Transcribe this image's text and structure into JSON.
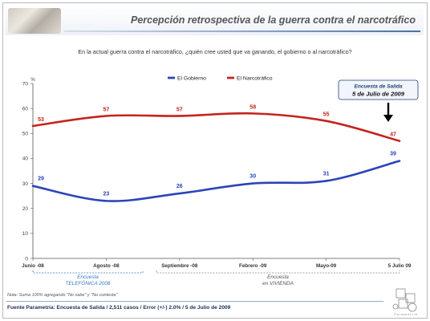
{
  "title": "Percepción retrospectiva de la guerra contra el narcotráfico",
  "question": "En la actual guerra contra el narcotráfico, ¿quién cree usted que va ganando, el gobierno o al narcotráfico?",
  "colors": {
    "gobierno": "#2a45b8",
    "narco": "#c4241c",
    "callout_text": "#1f3f7a"
  },
  "chart_data": {
    "type": "line",
    "categories": [
      "Junio -08",
      "Agosto -08",
      "Septiembre -08",
      "Febrero -09",
      "Mayo-09",
      "5 Julio 09"
    ],
    "series": [
      {
        "name": "El Gobierno",
        "values": [
          29,
          23,
          26,
          30,
          31,
          39
        ]
      },
      {
        "name": "El Narcotráfico",
        "values": [
          53,
          57,
          57,
          58,
          55,
          47
        ]
      }
    ],
    "ylabel": "%",
    "ylim": [
      0,
      70
    ],
    "yticks": [
      0,
      10,
      20,
      30,
      40,
      50,
      60,
      70
    ],
    "legend_position": "top-center",
    "grid": false
  },
  "callout": {
    "line1": "Encuesta de Salida",
    "line2": "5 de Julio de 2009"
  },
  "brackets": [
    {
      "line1": "Encuesta",
      "line2": "TELEFÓNICA 2008"
    },
    {
      "line1": "Encuesta",
      "line2": "en VIVIENDA"
    }
  ],
  "note": "Nota: Suma 100% agregando \"No sabe\" y \"No contesta\"",
  "source": "Fuente Parametría: Encuesta de Salida / 2,511 casos / Error (+/-) 2.0% / 5 de Julio de 2009",
  "logo_text": "Parametría"
}
